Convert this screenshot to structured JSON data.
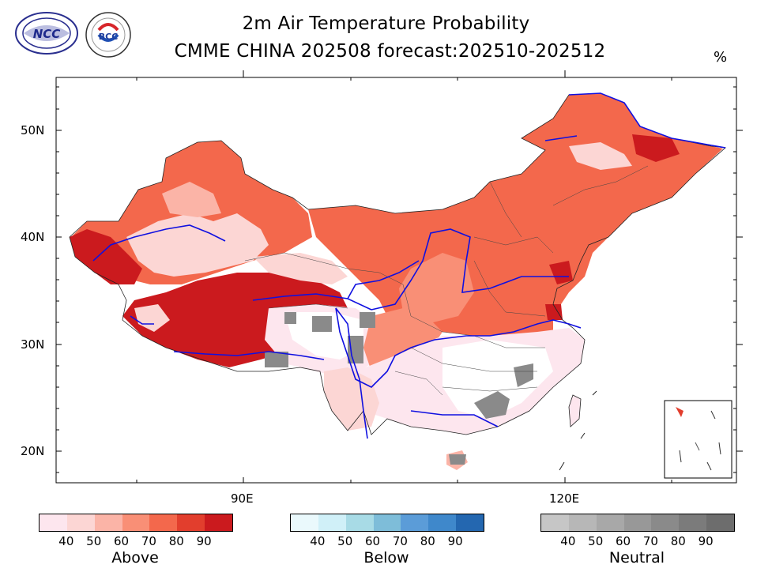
{
  "header": {
    "title_line1": "2m Air Temperature Probability",
    "title_line2": "CMME CHINA 202508 forecast:202510-202512",
    "unit": "%",
    "logo_left": "NCC",
    "logo_right": "BCC"
  },
  "map": {
    "lat_labels": [
      "50N",
      "40N",
      "30N",
      "20N"
    ],
    "lon_labels": [
      "90E",
      "120E"
    ],
    "regions": [
      {
        "name": "northeast",
        "category": "Above",
        "level": 80
      },
      {
        "name": "xinjiang-west",
        "category": "Above",
        "level": 90
      },
      {
        "name": "tibet",
        "category": "Above",
        "level": 90
      },
      {
        "name": "north-china",
        "category": "Above",
        "level": 70
      },
      {
        "name": "tarim-basin",
        "category": "Above",
        "level": 40
      },
      {
        "name": "south-china",
        "category": "Above",
        "level": 40
      },
      {
        "name": "southeast",
        "category": "Neutral",
        "level": 60
      }
    ]
  },
  "legend": {
    "levels": [
      "40",
      "50",
      "60",
      "70",
      "80",
      "90"
    ],
    "above": {
      "title": "Above",
      "colors": [
        "#fde6ee",
        "#fcd6d4",
        "#fbb4a7",
        "#f98f76",
        "#f3684c",
        "#e23e2d",
        "#cb1a1e"
      ]
    },
    "below": {
      "title": "Below",
      "colors": [
        "#eaf9fc",
        "#d0f0f8",
        "#a8dbe6",
        "#7ebdd9",
        "#5b9cd8",
        "#3f88cb",
        "#2467b0"
      ]
    },
    "neutral": {
      "title": "Neutral",
      "colors": [
        "#c6c6c6",
        "#b7b7b7",
        "#a8a8a8",
        "#989898",
        "#8a8a8a",
        "#7b7b7b",
        "#6d6d6d"
      ]
    }
  }
}
